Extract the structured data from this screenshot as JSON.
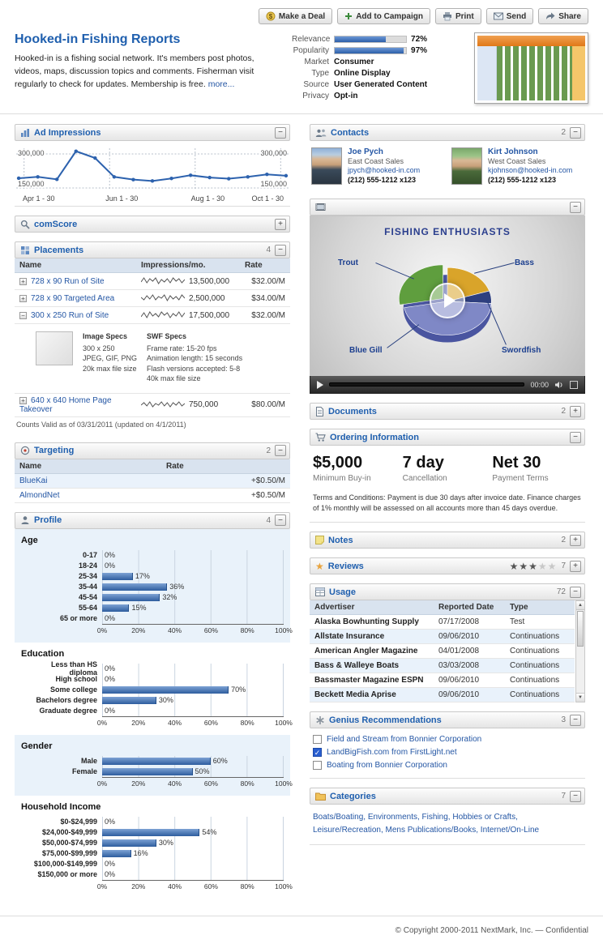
{
  "toolbar": {
    "buttons": [
      {
        "label": "Make a Deal"
      },
      {
        "label": "Add to Campaign"
      },
      {
        "label": "Print"
      },
      {
        "label": "Send"
      },
      {
        "label": "Share"
      }
    ]
  },
  "header": {
    "title": "Hooked-in Fishing Reports",
    "description": "Hooked-in is a fishing social network. It's members post photos, videos, maps, discussion topics and comments. Fisherman visit regularly to check for updates. Membership is free.",
    "more_link": "more...",
    "relevance_label": "Relevance",
    "relevance_value": "72%",
    "popularity_label": "Popularity",
    "popularity_value": "97%",
    "attributes": [
      {
        "label": "Market",
        "value": "Consumer"
      },
      {
        "label": "Type",
        "value": "Online Display"
      },
      {
        "label": "Source",
        "value": "User Generated Content"
      },
      {
        "label": "Privacy",
        "value": "Opt-in"
      }
    ]
  },
  "panels": {
    "ad_impressions": {
      "title": "Ad Impressions"
    },
    "comscore": {
      "title": "comScore"
    },
    "placements": {
      "title": "Placements",
      "count": "4",
      "columns": [
        "Name",
        "Impressions/mo.",
        "Rate"
      ],
      "rows": [
        {
          "name": "728 x 90 Run of Site",
          "impressions": "13,500,000",
          "rate": "$32.00/M",
          "spark": [
            4,
            9,
            3,
            8,
            5,
            9,
            2,
            7,
            4,
            8,
            3,
            9,
            5,
            8,
            3,
            7
          ]
        },
        {
          "name": "728 x 90 Targeted Area",
          "impressions": "2,500,000",
          "rate": "$34.00/M",
          "spark": [
            6,
            3,
            8,
            4,
            9,
            3,
            7,
            5,
            9,
            2,
            8,
            4,
            7,
            3,
            9,
            5
          ]
        },
        {
          "name": "300 x 250 Run of Site",
          "impressions": "17,500,000",
          "rate": "$32.00/M",
          "spark": [
            3,
            8,
            2,
            9,
            4,
            7,
            3,
            9,
            5,
            8,
            2,
            7,
            4,
            9,
            3,
            8
          ]
        },
        {
          "name": "640 x 640 Home Page Takeover",
          "impressions": "750,000",
          "rate": "$80.00/M",
          "spark": [
            5,
            8,
            4,
            9,
            3,
            7,
            5,
            9,
            4,
            8,
            3,
            8,
            5,
            9,
            4,
            7
          ]
        }
      ],
      "image_specs": {
        "heading": "Image Specs",
        "lines": [
          "300 x 250",
          "JPEG, GIF, PNG",
          "20k max file size"
        ]
      },
      "swf_specs": {
        "heading": "SWF Specs",
        "lines": [
          "Frame rate: 15-20 fps",
          "Animation length: 15 seconds",
          "Flash versions accepted: 5-8",
          "40k max file size"
        ]
      },
      "footnote": "Counts Valid as of 03/31/2011 (updated on 4/1/2011)"
    },
    "targeting": {
      "title": "Targeting",
      "count": "2",
      "columns": [
        "Name",
        "Rate"
      ],
      "rows": [
        {
          "name": "BlueKai",
          "rate": "+$0.50/M"
        },
        {
          "name": "AlmondNet",
          "rate": "+$0.50/M"
        }
      ]
    },
    "profile": {
      "title": "Profile",
      "count": "4"
    },
    "contacts": {
      "title": "Contacts",
      "count": "2",
      "people": [
        {
          "name": "Joe Pych",
          "role": "East Coast Sales",
          "email": "jpych@hooked-in.com",
          "phone": "(212) 555-1212 x123"
        },
        {
          "name": "Kirt Johnson",
          "role": "West Coast Sales",
          "email": "kjohnson@hooked-in.com",
          "phone": "(212) 555-1212 x123"
        }
      ]
    },
    "video": {
      "time": "00:00"
    },
    "documents": {
      "title": "Documents",
      "count": "2"
    },
    "ordering": {
      "title": "Ordering Information",
      "stats": [
        {
          "value": "$5,000",
          "label": "Minimum Buy-in"
        },
        {
          "value": "7 day",
          "label": "Cancellation"
        },
        {
          "value": "Net 30",
          "label": "Payment Terms"
        }
      ],
      "terms": "Terms and Conditions: Payment is due 30 days after invoice date. Finance charges of 1% monthly will be assessed on all accounts more than 45 days overdue."
    },
    "notes": {
      "title": "Notes",
      "count": "2"
    },
    "reviews": {
      "title": "Reviews",
      "count": "7",
      "stars_filled": 3,
      "stars_total": 5
    },
    "usage": {
      "title": "Usage",
      "count": "72",
      "columns": [
        "Advertiser",
        "Reported Date",
        "Type"
      ],
      "rows": [
        {
          "advertiser": "Alaska Bowhunting Supply",
          "date": "07/17/2008",
          "type": "Test"
        },
        {
          "advertiser": "Allstate Insurance",
          "date": "09/06/2010",
          "type": "Continuations"
        },
        {
          "advertiser": "American Angler Magazine",
          "date": "04/01/2008",
          "type": "Continuations"
        },
        {
          "advertiser": "Bass & Walleye Boats",
          "date": "03/03/2008",
          "type": "Continuations"
        },
        {
          "advertiser": "Bassmaster Magazine ESPN",
          "date": "09/06/2010",
          "type": "Continuations"
        },
        {
          "advertiser": "Beckett Media Aprise",
          "date": "09/06/2010",
          "type": "Continuations"
        }
      ]
    },
    "genius": {
      "title": "Genius Recommendations",
      "count": "3",
      "items": [
        {
          "link": "Field and Stream",
          "rest": "from Bonnier Corporation",
          "checked": false
        },
        {
          "link": "LandBigFish.com",
          "rest": "from FirstLight.net",
          "checked": true
        },
        {
          "link": "Boating",
          "rest": "from Bonnier Corporation",
          "checked": false
        }
      ]
    },
    "categories": {
      "title": "Categories",
      "count": "7",
      "links": [
        "Boats/Boating",
        "Environments",
        "Fishing",
        "Hobbies or Crafts",
        "Leisure/Recreation",
        "Mens Publications/Books",
        "Internet/On-Line"
      ]
    }
  },
  "footer": {
    "copyright": "© Copyright 2000-2011 NextMark, Inc. — Confidential"
  },
  "colors": {
    "accent_blue": "#1f5fae",
    "link_blue": "#2456a4",
    "bar_blue": "#2e5d9e",
    "pie_green": "#5f9e3e",
    "pie_gold": "#d9a42a",
    "pie_periwinkle": "#7f88c6",
    "pie_navy": "#2e3f7f"
  },
  "chart_data": [
    {
      "id": "ad_impressions",
      "type": "line",
      "title": "Ad Impressions",
      "x_tick_labels": [
        "Apr 1 - 30",
        "Jun 1 - 30",
        "Aug 1 - 30",
        "Oct 1 - 30"
      ],
      "y_tick_labels": [
        "300,000",
        "150,000"
      ],
      "ylim": [
        150000,
        325000
      ],
      "y_gridlines": [
        300000,
        150000
      ],
      "values": [
        193000,
        199000,
        188000,
        312000,
        282000,
        199000,
        187000,
        181000,
        192000,
        206000,
        196000,
        191000,
        199000,
        210000,
        204000
      ]
    },
    {
      "id": "age",
      "type": "bar",
      "title": "Age",
      "unit": "%",
      "xlim": [
        0,
        100
      ],
      "ticks": [
        "0%",
        "20%",
        "40%",
        "60%",
        "80%",
        "100%"
      ],
      "categories": [
        "0-17",
        "18-24",
        "25-34",
        "35-44",
        "45-54",
        "55-64",
        "65 or more"
      ],
      "values": [
        0,
        0,
        17,
        36,
        32,
        15,
        0
      ]
    },
    {
      "id": "education",
      "type": "bar",
      "title": "Education",
      "unit": "%",
      "xlim": [
        0,
        100
      ],
      "ticks": [
        "0%",
        "20%",
        "40%",
        "60%",
        "80%",
        "100%"
      ],
      "categories": [
        "Less than HS diploma",
        "High school",
        "Some college",
        "Bachelors degree",
        "Graduate degree"
      ],
      "values": [
        0,
        0,
        70,
        30,
        0
      ]
    },
    {
      "id": "gender",
      "type": "bar",
      "title": "Gender",
      "unit": "%",
      "xlim": [
        0,
        100
      ],
      "ticks": [
        "0%",
        "20%",
        "40%",
        "60%",
        "80%",
        "100%"
      ],
      "categories": [
        "Male",
        "Female"
      ],
      "values": [
        60,
        50
      ]
    },
    {
      "id": "household_income",
      "type": "bar",
      "title": "Household Income",
      "unit": "%",
      "xlim": [
        0,
        100
      ],
      "ticks": [
        "0%",
        "20%",
        "40%",
        "60%",
        "80%",
        "100%"
      ],
      "categories": [
        "$0-$24,999",
        "$24,000-$49,999",
        "$50,000-$74,999",
        "$75,000-$99,999",
        "$100,000-$149,999",
        "$150,000 or more"
      ],
      "values": [
        0,
        54,
        30,
        16,
        0,
        0
      ]
    },
    {
      "id": "fishing_enthusiasts",
      "type": "pie",
      "title": "FISHING ENTHUSIASTS",
      "labels": [
        "Trout",
        "Bass",
        "Blue Gill",
        "Swordfish"
      ],
      "values": [
        28,
        20,
        46,
        6
      ],
      "colors": [
        "#5f9e3e",
        "#d9a42a",
        "#7f88c6",
        "#2e3f7f"
      ]
    }
  ]
}
